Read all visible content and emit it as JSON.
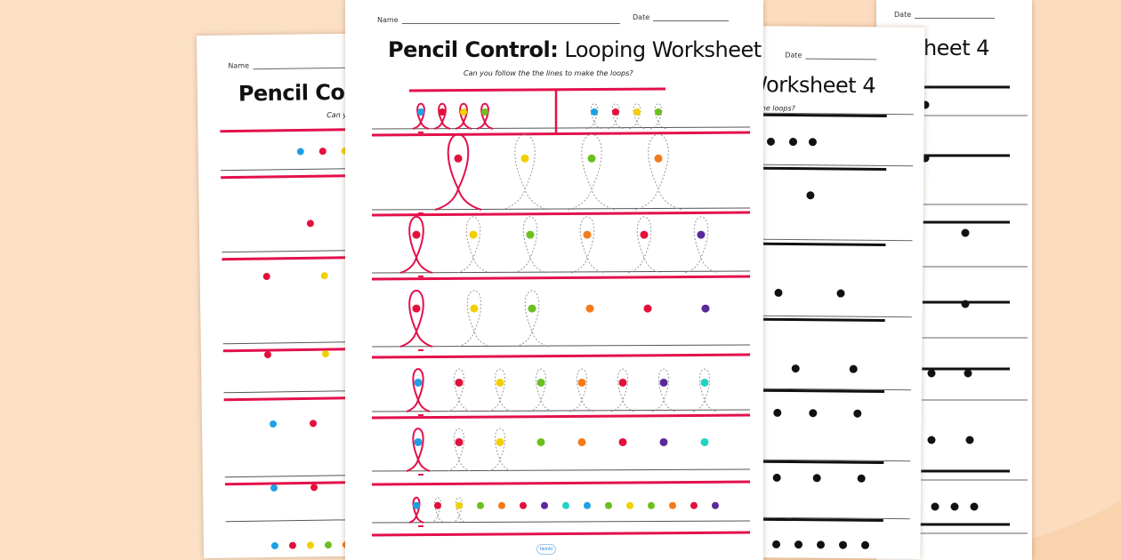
{
  "worksheet": {
    "name_label": "Name",
    "date_label": "Date",
    "title_bold": "Pencil Control:",
    "title_rest": " Looping Worksheet 4",
    "instruction": "Can you follow the the lines to make the loops?",
    "footer_logo": "twinkl"
  },
  "colors": {
    "background": "#f9d2ae",
    "accent_red": "#e3114a",
    "blue": "#1fa0e6",
    "red": "#e3103c",
    "yellow": "#f2cf00",
    "green": "#6cbf1f",
    "orange": "#f47a1a",
    "purple": "#5a2a9a",
    "teal": "#22d3c3"
  },
  "front_rows": [
    {
      "style": "small",
      "dots": [
        "blue",
        "red",
        "yellow",
        "green"
      ],
      "right_dots": [
        "blue",
        "red",
        "yellow",
        "green"
      ]
    },
    {
      "style": "big",
      "dots": [
        "red",
        "yellow",
        "green",
        "orange"
      ],
      "traced": [
        "solid",
        "dashed",
        "dashed",
        "dashed"
      ]
    },
    {
      "style": "medium",
      "dots": [
        "red",
        "yellow",
        "green",
        "orange",
        "red",
        "purple"
      ],
      "traced": [
        "solid",
        "dashed",
        "dashed",
        "dashed",
        "dashed",
        "dashed"
      ]
    },
    {
      "style": "medium",
      "dots": [
        "red",
        "yellow",
        "green",
        "orange",
        "red",
        "purple"
      ],
      "traced": [
        "solid",
        "dashed",
        "dashed",
        "none",
        "none",
        "none"
      ]
    },
    {
      "style": "small2",
      "dots": [
        "blue",
        "red",
        "yellow",
        "green",
        "orange",
        "red",
        "purple",
        "teal"
      ],
      "traced": [
        "solid",
        "dashed",
        "dashed",
        "dashed",
        "dashed",
        "dashed",
        "dashed",
        "dashed"
      ]
    },
    {
      "style": "small2",
      "dots": [
        "blue",
        "red",
        "yellow",
        "green",
        "orange",
        "red",
        "purple",
        "teal"
      ],
      "traced": [
        "solid",
        "dashed",
        "dashed",
        "none",
        "none",
        "none",
        "none",
        "none"
      ]
    },
    {
      "style": "tiny",
      "dots": [
        "blue",
        "red",
        "yellow",
        "green",
        "orange",
        "red",
        "purple",
        "teal",
        "blue",
        "green",
        "yellow",
        "green",
        "orange",
        "red",
        "purple"
      ],
      "traced": [
        "solid",
        "dashed",
        "dashed",
        "none",
        "none",
        "none",
        "none",
        "none",
        "none",
        "none",
        "none",
        "none",
        "none",
        "none",
        "none"
      ]
    }
  ]
}
